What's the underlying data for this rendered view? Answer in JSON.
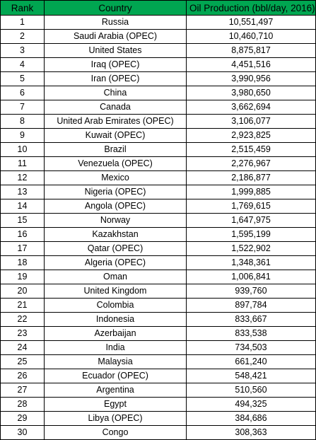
{
  "colors": {
    "header_background": "#00a651",
    "border": "#000000",
    "text": "#000000"
  },
  "table": {
    "columns": [
      "Rank",
      "Country",
      "Oil Production (bbl/day, 2016)"
    ],
    "rows": [
      [
        "1",
        "Russia",
        "10,551,497"
      ],
      [
        "2",
        "Saudi Arabia (OPEC)",
        "10,460,710"
      ],
      [
        "3",
        "United States",
        "8,875,817"
      ],
      [
        "4",
        "Iraq (OPEC)",
        "4,451,516"
      ],
      [
        "5",
        "Iran (OPEC)",
        "3,990,956"
      ],
      [
        "6",
        "China",
        "3,980,650"
      ],
      [
        "7",
        "Canada",
        "3,662,694"
      ],
      [
        "8",
        "United Arab Emirates (OPEC)",
        "3,106,077"
      ],
      [
        "9",
        "Kuwait (OPEC)",
        "2,923,825"
      ],
      [
        "10",
        "Brazil",
        "2,515,459"
      ],
      [
        "11",
        "Venezuela (OPEC)",
        "2,276,967"
      ],
      [
        "12",
        "Mexico",
        "2,186,877"
      ],
      [
        "13",
        "Nigeria (OPEC)",
        "1,999,885"
      ],
      [
        "14",
        "Angola (OPEC)",
        "1,769,615"
      ],
      [
        "15",
        "Norway",
        "1,647,975"
      ],
      [
        "16",
        "Kazakhstan",
        "1,595,199"
      ],
      [
        "17",
        "Qatar (OPEC)",
        "1,522,902"
      ],
      [
        "18",
        "Algeria (OPEC)",
        "1,348,361"
      ],
      [
        "19",
        "Oman",
        "1,006,841"
      ],
      [
        "20",
        "United Kingdom",
        "939,760"
      ],
      [
        "21",
        "Colombia",
        "897,784"
      ],
      [
        "22",
        "Indonesia",
        "833,667"
      ],
      [
        "23",
        "Azerbaijan",
        "833,538"
      ],
      [
        "24",
        "India",
        "734,503"
      ],
      [
        "25",
        "Malaysia",
        "661,240"
      ],
      [
        "26",
        "Ecuador (OPEC)",
        "548,421"
      ],
      [
        "27",
        "Argentina",
        "510,560"
      ],
      [
        "28",
        "Egypt",
        "494,325"
      ],
      [
        "29",
        "Libya (OPEC)",
        "384,686"
      ],
      [
        "30",
        "Congo",
        "308,363"
      ]
    ]
  }
}
